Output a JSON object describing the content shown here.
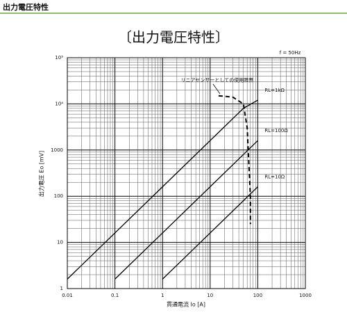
{
  "header": {
    "title": "出力電圧特性"
  },
  "chart_data": {
    "type": "line",
    "title": "〔出力電圧特性〕",
    "annotation": "f = 50Hz",
    "xlabel": "貫通電流 Io [A]",
    "ylabel": "出力電圧 Eo [mV]",
    "log_x": true,
    "log_y": true,
    "grid": true,
    "xlim": [
      0.01,
      1000
    ],
    "ylim": [
      1,
      100000
    ],
    "xticks": [
      0.01,
      0.1,
      1,
      10,
      100,
      1000
    ],
    "yticks": [
      1,
      10,
      100,
      1000,
      {
        "value": 10000,
        "label": "10⁴"
      },
      {
        "value": 100000,
        "label": "10⁵"
      }
    ],
    "series": [
      {
        "name": "RL=1kΩ",
        "color": "#000000",
        "dashed": false,
        "x": [
          0.01,
          1,
          50,
          100
        ],
        "values": [
          1.6,
          160,
          8000,
          12000
        ]
      },
      {
        "name": "RL=100Ω",
        "color": "#000000",
        "dashed": false,
        "x": [
          0.1,
          100
        ],
        "values": [
          1.6,
          1600
        ]
      },
      {
        "name": "RL=10Ω",
        "color": "#000000",
        "dashed": false,
        "x": [
          1,
          100
        ],
        "values": [
          1.6,
          160
        ]
      },
      {
        "name": "リニアセンサーとしての使用限界",
        "color": "#000000",
        "dashed": true,
        "x": [
          15,
          30,
          50,
          60,
          65,
          70,
          70
        ],
        "values": [
          15000,
          14000,
          10000,
          3000,
          500,
          100,
          25
        ]
      }
    ]
  }
}
